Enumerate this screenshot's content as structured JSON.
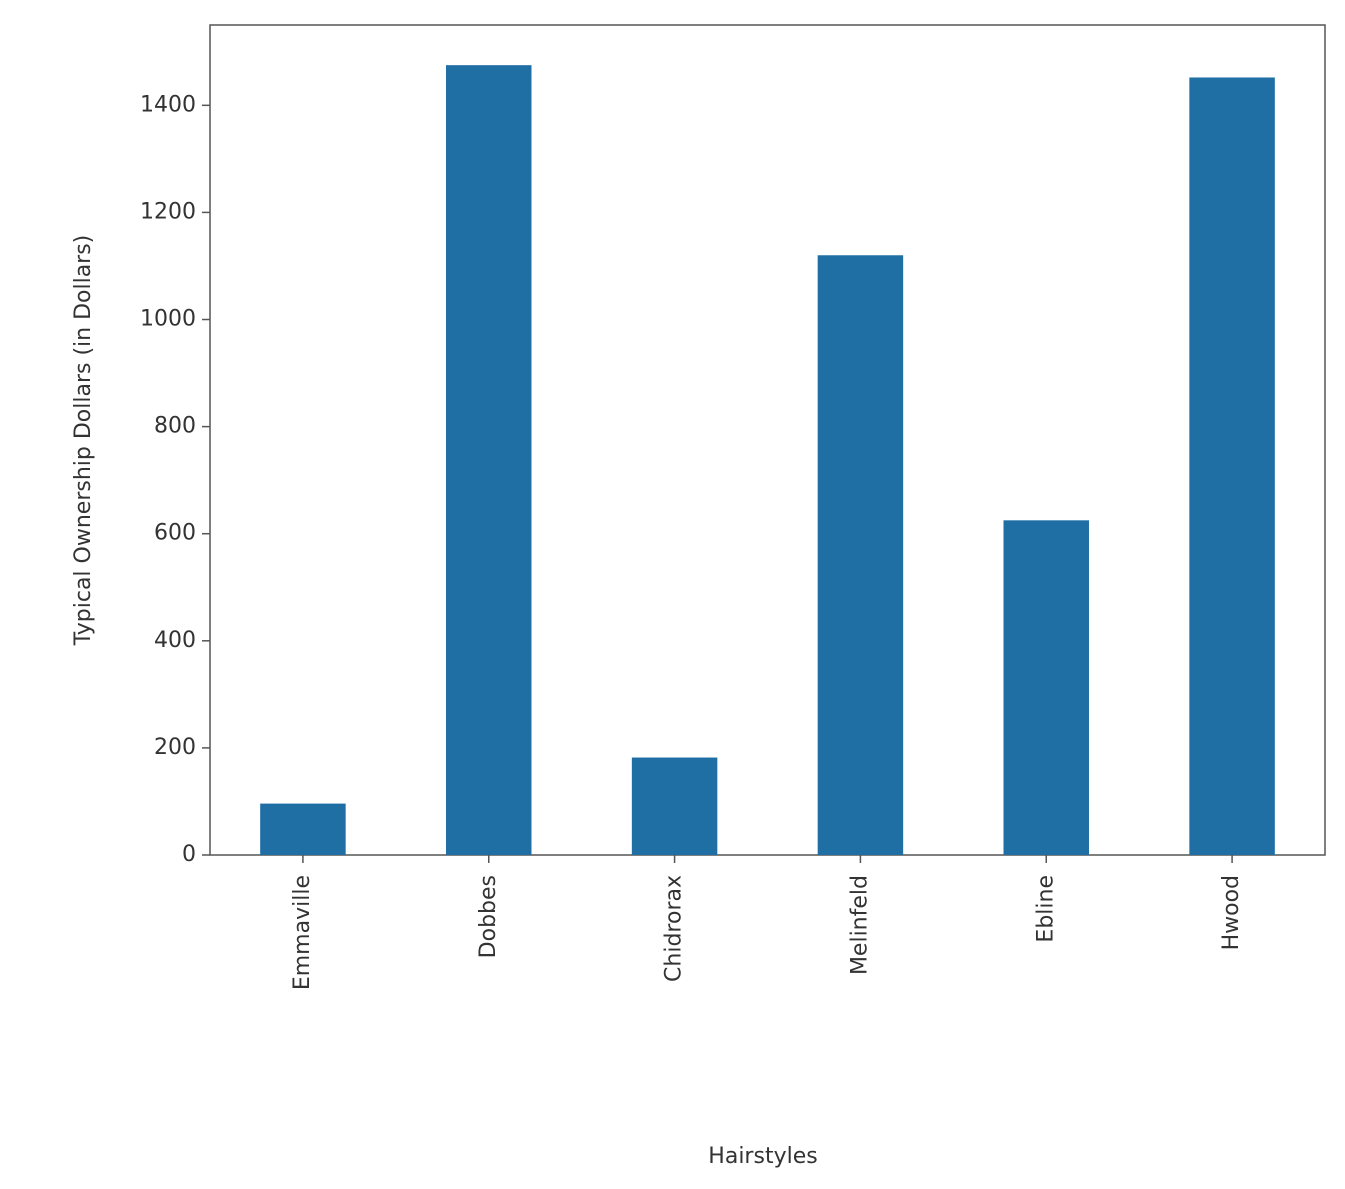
{
  "chart_data": {
    "type": "bar",
    "title": "",
    "xlabel": "Hairstyles",
    "ylabel": "Typical Ownership Dollars (in Dollars)",
    "categories": [
      "Emmaville",
      "Dobbes",
      "Chidrorax",
      "Melinfeld",
      "Ebline",
      "Hwood"
    ],
    "values": [
      96,
      1475,
      182,
      1120,
      625,
      1452
    ],
    "ylim": [
      0,
      1550
    ],
    "yticks": [
      0,
      200,
      400,
      600,
      800,
      1000,
      1200,
      1400
    ],
    "ytick_labels": [
      "0",
      "200",
      "400",
      "600",
      "800",
      "1000",
      "1200",
      "1400"
    ],
    "grid": false,
    "bar_color": "#1f6fa5",
    "axis_color": "#555555"
  }
}
